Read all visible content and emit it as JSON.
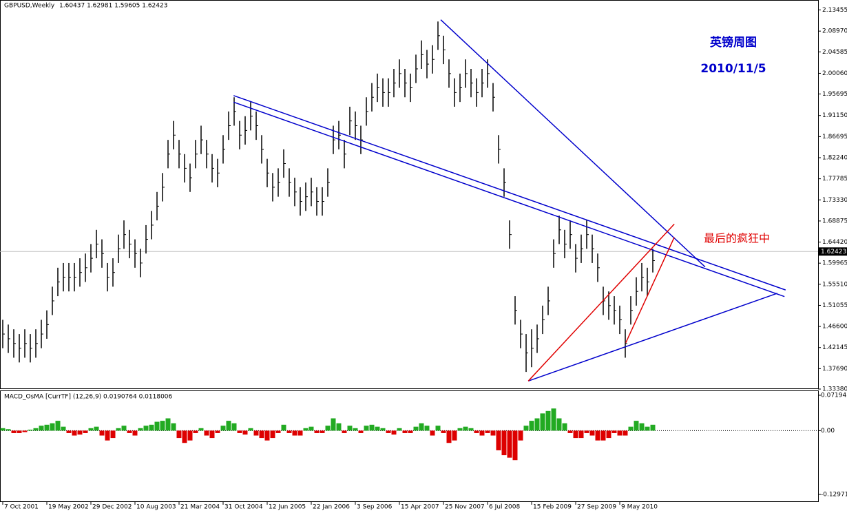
{
  "chart_data": [
    {
      "type": "hlc-bars",
      "title": "GBPUSD,Weekly",
      "ohlc_text": "1.60437 1.62981 1.59605 1.62423",
      "note_title": "英镑周图",
      "note_date": "2010/11/5",
      "note_red": "最后的疯狂中",
      "color": "#000000",
      "highs": [
        1.48,
        1.47,
        1.46,
        1.45,
        1.46,
        1.45,
        1.46,
        1.48,
        1.5,
        1.55,
        1.59,
        1.6,
        1.6,
        1.6,
        1.61,
        1.62,
        1.64,
        1.67,
        1.65,
        1.6,
        1.61,
        1.66,
        1.69,
        1.67,
        1.65,
        1.63,
        1.68,
        1.71,
        1.75,
        1.79,
        1.86,
        1.9,
        1.86,
        1.83,
        1.81,
        1.86,
        1.89,
        1.86,
        1.83,
        1.82,
        1.87,
        1.92,
        1.95,
        1.9,
        1.91,
        1.94,
        1.92,
        1.87,
        1.82,
        1.79,
        1.8,
        1.84,
        1.8,
        1.78,
        1.76,
        1.77,
        1.78,
        1.76,
        1.76,
        1.8,
        1.89,
        1.9,
        1.86,
        1.93,
        1.92,
        1.89,
        1.95,
        1.98,
        2.0,
        1.99,
        1.99,
        2.01,
        2.03,
        2.01,
        2.0,
        2.04,
        2.07,
        2.05,
        2.06,
        2.11,
        2.08,
        2.03,
        1.99,
        2.0,
        2.03,
        2.01,
        1.99,
        2.01,
        2.03,
        1.98,
        1.87,
        1.8,
        1.69,
        1.53,
        1.48,
        1.45,
        1.46,
        1.47,
        1.51,
        1.55,
        1.65,
        1.7,
        1.67,
        1.69,
        1.64,
        1.66,
        1.69,
        1.66,
        1.62,
        1.55,
        1.54,
        1.53,
        1.51,
        1.46,
        1.53,
        1.57,
        1.6,
        1.59,
        1.63
      ],
      "lows": [
        1.42,
        1.41,
        1.4,
        1.39,
        1.4,
        1.39,
        1.4,
        1.42,
        1.44,
        1.49,
        1.53,
        1.54,
        1.54,
        1.54,
        1.55,
        1.56,
        1.58,
        1.61,
        1.59,
        1.54,
        1.55,
        1.6,
        1.63,
        1.61,
        1.59,
        1.57,
        1.62,
        1.65,
        1.69,
        1.73,
        1.8,
        1.84,
        1.8,
        1.77,
        1.75,
        1.8,
        1.83,
        1.8,
        1.77,
        1.76,
        1.81,
        1.86,
        1.89,
        1.84,
        1.85,
        1.88,
        1.86,
        1.81,
        1.76,
        1.73,
        1.74,
        1.78,
        1.74,
        1.72,
        1.7,
        1.71,
        1.72,
        1.7,
        1.7,
        1.74,
        1.83,
        1.84,
        1.8,
        1.87,
        1.86,
        1.83,
        1.89,
        1.92,
        1.94,
        1.93,
        1.93,
        1.95,
        1.97,
        1.95,
        1.94,
        1.98,
        2.01,
        1.99,
        2.0,
        2.05,
        2.02,
        1.97,
        1.93,
        1.94,
        1.97,
        1.95,
        1.93,
        1.95,
        1.97,
        1.92,
        1.81,
        1.74,
        1.63,
        1.47,
        1.42,
        1.37,
        1.38,
        1.41,
        1.45,
        1.49,
        1.59,
        1.64,
        1.61,
        1.63,
        1.58,
        1.6,
        1.63,
        1.6,
        1.56,
        1.49,
        1.48,
        1.47,
        1.45,
        1.4,
        1.47,
        1.51,
        1.54,
        1.53,
        1.58
      ],
      "current": {
        "value": 1.62423,
        "label": "1.62423"
      },
      "trendlines": [
        {
          "color": "#0000cc",
          "x": [
            79.5,
            127.5
          ],
          "y": [
            2.1137,
            1.5917
          ]
        },
        {
          "color": "#0000cc",
          "x": [
            41.9,
            142.1
          ],
          "y": [
            1.9536,
            1.543
          ]
        },
        {
          "color": "#0000cc",
          "x": [
            41.9,
            141.9
          ],
          "y": [
            1.9397,
            1.5291
          ]
        },
        {
          "color": "#0000cc",
          "x": [
            95.4,
            140.6
          ],
          "y": [
            1.3508,
            1.536
          ]
        },
        {
          "color": "#e00000",
          "x": [
            95.4,
            121.9
          ],
          "y": [
            1.3508,
            1.6822
          ]
        },
        {
          "color": "#e00000",
          "x": [
            113.1,
            121.9
          ],
          "y": [
            1.4316,
            1.6543
          ]
        }
      ],
      "xlim": [
        -0.5,
        148
      ],
      "xticks": [
        {
          "value": 0,
          "label": "7 Oct 2001"
        },
        {
          "value": 8,
          "label": "19 May 2002"
        },
        {
          "value": 16,
          "label": "29 Dec 2002"
        },
        {
          "value": 24,
          "label": "10 Aug 2003"
        },
        {
          "value": 32,
          "label": "21 Mar 2004"
        },
        {
          "value": 40,
          "label": "31 Oct 2004"
        },
        {
          "value": 48,
          "label": "12 Jun 2005"
        },
        {
          "value": 56,
          "label": "22 Jan 2006"
        },
        {
          "value": 64,
          "label": "3 Sep 2006"
        },
        {
          "value": 72,
          "label": "15 Apr 2007"
        },
        {
          "value": 80,
          "label": "25 Nov 2007"
        },
        {
          "value": 88,
          "label": "6 Jul 2008"
        },
        {
          "value": 96,
          "label": "15 Feb 2009"
        },
        {
          "value": 104,
          "label": "27 Sep 2009"
        },
        {
          "value": 112,
          "label": "9 May 2010"
        }
      ],
      "ylim": [
        1.3338,
        2.1554
      ],
      "yticks": [
        {
          "value": 2.13455,
          "label": "2.13455"
        },
        {
          "value": 2.0897,
          "label": "2.08970"
        },
        {
          "value": 2.04585,
          "label": "2.04585"
        },
        {
          "value": 2.0006,
          "label": "2.00060"
        },
        {
          "value": 1.95695,
          "label": "1.95695"
        },
        {
          "value": 1.9115,
          "label": "1.91150"
        },
        {
          "value": 1.86695,
          "label": "1.86695"
        },
        {
          "value": 1.8224,
          "label": "1.82240"
        },
        {
          "value": 1.77785,
          "label": "1.77785"
        },
        {
          "value": 1.7333,
          "label": "1.73330"
        },
        {
          "value": 1.68875,
          "label": "1.68875"
        },
        {
          "value": 1.6442,
          "label": "1.64420"
        },
        {
          "value": 1.59965,
          "label": "1.59965"
        },
        {
          "value": 1.5551,
          "label": "1.55510"
        },
        {
          "value": 1.51055,
          "label": "1.51055"
        },
        {
          "value": 1.466,
          "label": "1.46600"
        },
        {
          "value": 1.42145,
          "label": "1.42145"
        },
        {
          "value": 1.3769,
          "label": "1.37690"
        },
        {
          "value": 1.3338,
          "label": "1.33380"
        }
      ]
    },
    {
      "type": "histogram-osc",
      "title": "MACD_OsMA [CurrTF] (12,26,9) 0.0190764 0.0118006",
      "up_color": "#22aa22",
      "down_color": "#dd0000",
      "values": [
        0.005,
        0.003,
        -0.005,
        -0.005,
        -0.003,
        0.002,
        0.005,
        0.01,
        0.012,
        0.015,
        0.02,
        0.008,
        -0.005,
        -0.01,
        -0.008,
        -0.005,
        0.005,
        0.008,
        -0.01,
        -0.02,
        -0.015,
        0.005,
        0.01,
        -0.005,
        -0.01,
        0.005,
        0.01,
        0.012,
        0.018,
        0.02,
        0.025,
        0.015,
        -0.015,
        -0.025,
        -0.02,
        -0.005,
        0.005,
        -0.01,
        -0.015,
        -0.005,
        0.01,
        0.02,
        0.015,
        -0.005,
        -0.008,
        0.005,
        -0.01,
        -0.015,
        -0.02,
        -0.015,
        -0.005,
        0.012,
        -0.005,
        -0.01,
        -0.01,
        0.005,
        0.008,
        -0.005,
        -0.005,
        0.01,
        0.025,
        0.015,
        -0.005,
        0.01,
        0.005,
        -0.005,
        0.01,
        0.012,
        0.008,
        0.005,
        -0.005,
        -0.008,
        0.005,
        -0.005,
        -0.005,
        0.008,
        0.015,
        0.01,
        -0.01,
        0.01,
        -0.005,
        -0.025,
        -0.02,
        0.005,
        0.008,
        0.005,
        -0.005,
        -0.01,
        -0.005,
        -0.01,
        -0.04,
        -0.05,
        -0.055,
        -0.06,
        -0.02,
        0.01,
        0.02,
        0.025,
        0.035,
        0.04,
        0.045,
        0.025,
        0.015,
        -0.005,
        -0.015,
        -0.015,
        -0.005,
        -0.01,
        -0.02,
        -0.02,
        -0.015,
        -0.005,
        -0.01,
        -0.01,
        0.008,
        0.02,
        0.015,
        0.008,
        0.012
      ],
      "ylim": [
        -0.12971,
        0.071945
      ],
      "yticks": [
        {
          "value": 0.071945,
          "label": "0.071945"
        },
        {
          "value": 0,
          "label": "0.00"
        },
        {
          "value": -0.12971,
          "label": "-0.12971"
        }
      ]
    }
  ]
}
